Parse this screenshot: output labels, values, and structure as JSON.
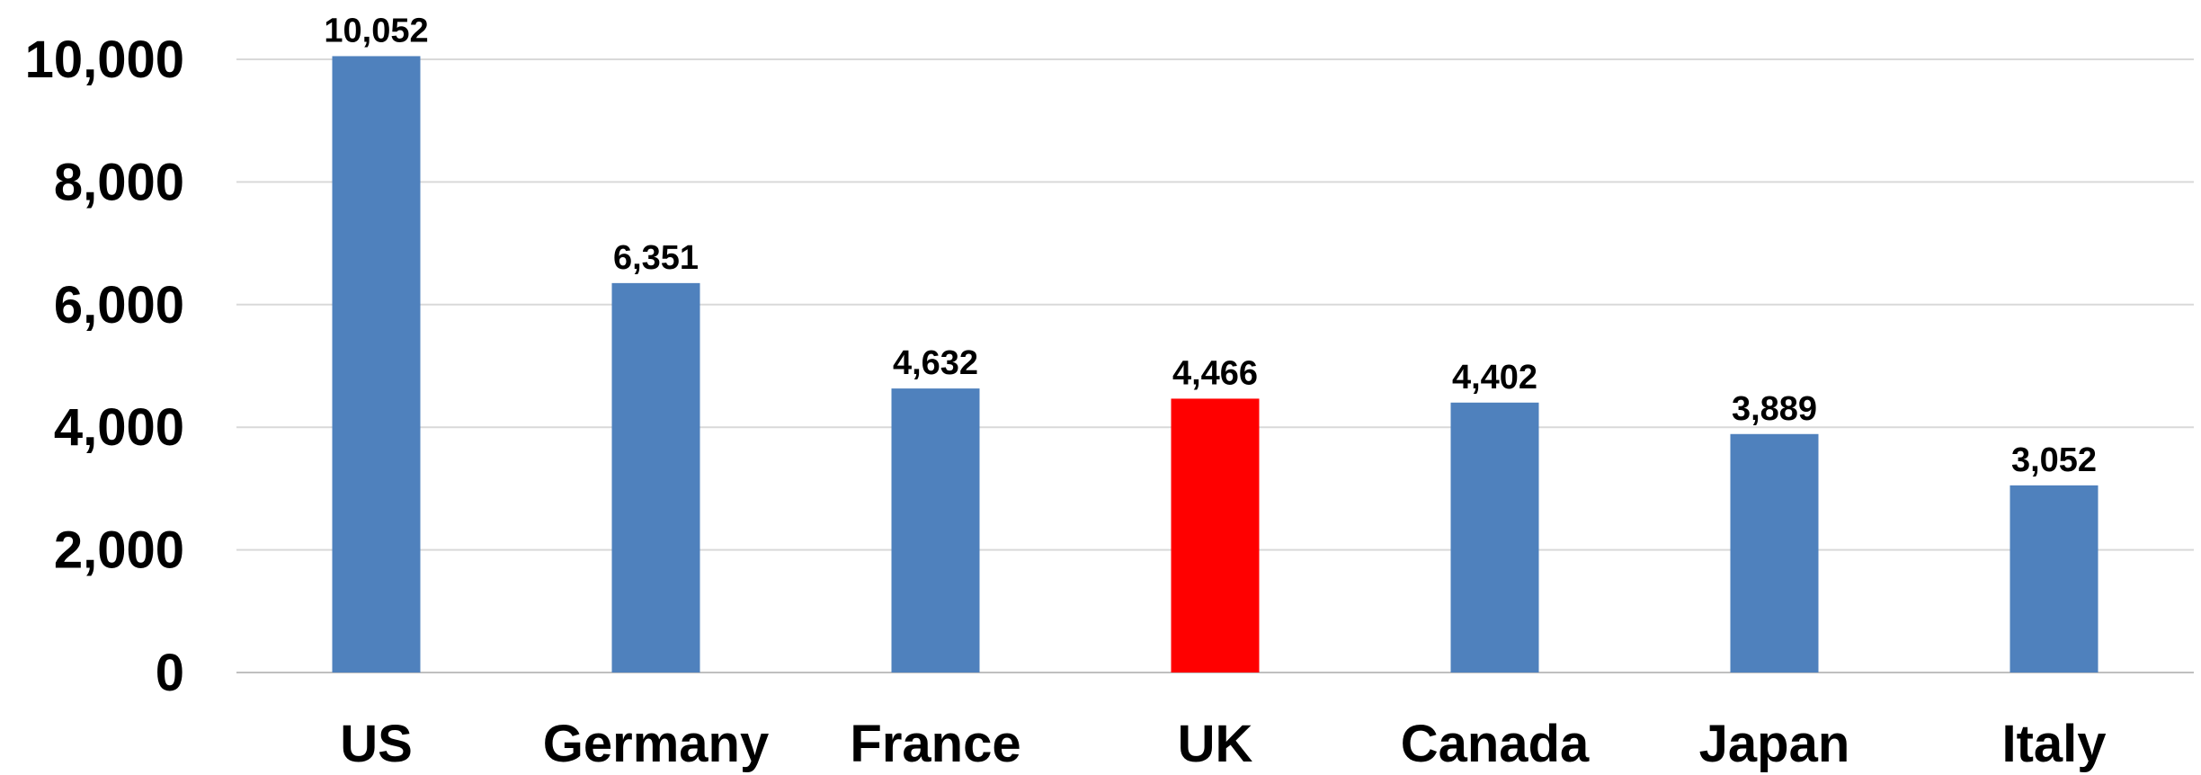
{
  "chart_data": {
    "type": "bar",
    "title": "",
    "xlabel": "",
    "ylabel": "",
    "categories": [
      "US",
      "Germany",
      "France",
      "UK",
      "Canada",
      "Japan",
      "Italy"
    ],
    "values": [
      10052,
      6351,
      4632,
      4466,
      4402,
      3889,
      3052
    ],
    "value_labels": [
      "10,052",
      "6,351",
      "4,632",
      "4,466",
      "4,402",
      "3,889",
      "3,052"
    ],
    "ylim": [
      0,
      10000
    ],
    "yticks": [
      0,
      2000,
      4000,
      6000,
      8000,
      10000
    ],
    "ytick_labels": [
      "0",
      "2,000",
      "4,000",
      "6,000",
      "8,000",
      "10,000"
    ],
    "grid": true,
    "legend": "none",
    "colors": {
      "default": "#4f81bd",
      "highlight": "#ff0000"
    },
    "highlight_category": "UK"
  }
}
